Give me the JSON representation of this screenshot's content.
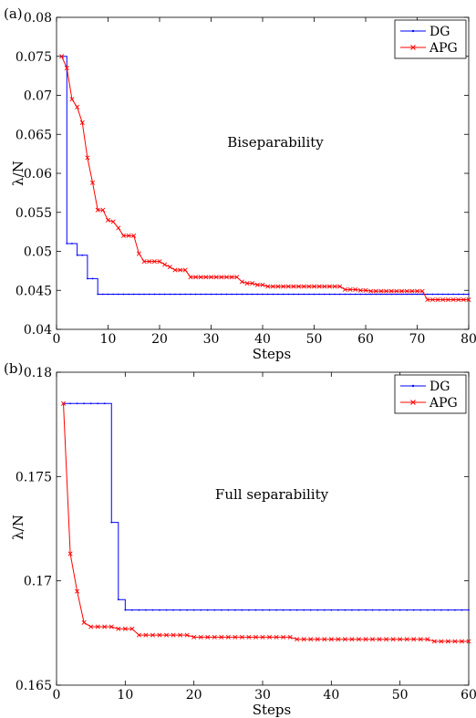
{
  "chart_data": [
    {
      "type": "line",
      "panel_label": "(a)",
      "xlabel": "Steps",
      "ylabel": "λ/N",
      "annotation": "Biseparability",
      "xlim": [
        0,
        80
      ],
      "ylim": [
        0.04,
        0.08
      ],
      "xticks": [
        "0",
        "10",
        "20",
        "30",
        "40",
        "50",
        "60",
        "70",
        "80"
      ],
      "yticks": [
        "0.04",
        "0.045",
        "0.05",
        "0.055",
        "0.06",
        "0.065",
        "0.07",
        "0.075",
        "0.08"
      ],
      "legend_position": "top-right",
      "grid": false,
      "series": [
        {
          "name": "DG",
          "color": "#0000ff",
          "marker": "dot",
          "x": [
            1,
            2,
            3,
            4,
            5,
            6,
            7,
            8,
            9,
            10,
            11,
            12,
            13,
            14,
            15,
            16,
            17,
            18,
            19,
            20,
            21,
            22,
            23,
            24,
            25,
            26,
            27,
            28,
            29,
            30,
            31,
            32,
            33,
            34,
            35,
            36,
            37,
            38,
            39,
            40,
            41,
            42,
            43,
            44,
            45,
            46,
            47,
            48,
            49,
            50,
            51,
            52,
            53,
            54,
            55,
            56,
            57,
            58,
            59,
            60,
            61,
            62,
            63,
            64,
            65,
            66,
            67,
            68,
            69,
            70,
            71,
            72,
            73,
            74,
            75,
            76,
            77,
            78,
            79,
            80
          ],
          "y": [
            0.075,
            0.051,
            0.051,
            0.0495,
            0.0495,
            0.0465,
            0.0465,
            0.0445,
            0.0445,
            0.0445,
            0.0445,
            0.0445,
            0.0445,
            0.0445,
            0.0445,
            0.0445,
            0.0445,
            0.0445,
            0.0445,
            0.0445,
            0.0445,
            0.0445,
            0.0445,
            0.0445,
            0.0445,
            0.0445,
            0.0445,
            0.0445,
            0.0445,
            0.0445,
            0.0445,
            0.0445,
            0.0445,
            0.0445,
            0.0445,
            0.0445,
            0.0445,
            0.0445,
            0.0445,
            0.0445,
            0.0445,
            0.0445,
            0.0445,
            0.0445,
            0.0445,
            0.0445,
            0.0445,
            0.0445,
            0.0445,
            0.0445,
            0.0445,
            0.0445,
            0.0445,
            0.0445,
            0.0445,
            0.0445,
            0.0445,
            0.0445,
            0.0445,
            0.0445,
            0.0445,
            0.0445,
            0.0445,
            0.0445,
            0.0445,
            0.0445,
            0.0445,
            0.0445,
            0.0445,
            0.0445,
            0.0445,
            0.0445,
            0.0445,
            0.0445,
            0.0445,
            0.0445,
            0.0445,
            0.0445,
            0.0445,
            0.0445
          ]
        },
        {
          "name": "APG",
          "color": "#ff0000",
          "marker": "x",
          "x": [
            1,
            2,
            3,
            4,
            5,
            6,
            7,
            8,
            9,
            10,
            11,
            12,
            13,
            14,
            15,
            16,
            17,
            18,
            19,
            20,
            21,
            22,
            23,
            24,
            25,
            26,
            27,
            28,
            29,
            30,
            31,
            32,
            33,
            34,
            35,
            36,
            37,
            38,
            39,
            40,
            41,
            42,
            43,
            44,
            45,
            46,
            47,
            48,
            49,
            50,
            51,
            52,
            53,
            54,
            55,
            56,
            57,
            58,
            59,
            60,
            61,
            62,
            63,
            64,
            65,
            66,
            67,
            68,
            69,
            70,
            71,
            72,
            73,
            74,
            75,
            76,
            77,
            78,
            79,
            80
          ],
          "y": [
            0.075,
            0.0735,
            0.0695,
            0.0685,
            0.0665,
            0.062,
            0.0588,
            0.0553,
            0.0553,
            0.054,
            0.0538,
            0.053,
            0.052,
            0.052,
            0.052,
            0.0497,
            0.0487,
            0.0487,
            0.0487,
            0.0487,
            0.0483,
            0.048,
            0.0476,
            0.0476,
            0.0476,
            0.0467,
            0.0467,
            0.0467,
            0.0467,
            0.0467,
            0.0467,
            0.0467,
            0.0467,
            0.0467,
            0.0467,
            0.0461,
            0.0459,
            0.0459,
            0.0457,
            0.0457,
            0.0455,
            0.0455,
            0.0455,
            0.0455,
            0.0455,
            0.0455,
            0.0455,
            0.0455,
            0.0455,
            0.0455,
            0.0455,
            0.0455,
            0.0455,
            0.0455,
            0.0455,
            0.0451,
            0.0451,
            0.0451,
            0.045,
            0.045,
            0.0449,
            0.0449,
            0.0449,
            0.0449,
            0.0449,
            0.0449,
            0.0449,
            0.0449,
            0.0449,
            0.0449,
            0.0449,
            0.0438,
            0.0438,
            0.0438,
            0.0438,
            0.0438,
            0.0438,
            0.0438,
            0.0438,
            0.0438
          ]
        }
      ]
    },
    {
      "type": "line",
      "panel_label": "(b)",
      "xlabel": "Steps",
      "ylabel": "λ/N",
      "annotation": "Full separability",
      "xlim": [
        0,
        60
      ],
      "ylim": [
        0.165,
        0.18
      ],
      "xticks": [
        "0",
        "10",
        "20",
        "30",
        "40",
        "50",
        "60"
      ],
      "yticks": [
        "0.165",
        "0.17",
        "0.175",
        "0.18"
      ],
      "legend_position": "top-right",
      "grid": false,
      "series": [
        {
          "name": "DG",
          "color": "#0000ff",
          "marker": "dot",
          "x": [
            1,
            2,
            3,
            4,
            5,
            6,
            7,
            8,
            9,
            10,
            11,
            12,
            13,
            14,
            15,
            16,
            17,
            18,
            19,
            20,
            21,
            22,
            23,
            24,
            25,
            26,
            27,
            28,
            29,
            30,
            31,
            32,
            33,
            34,
            35,
            36,
            37,
            38,
            39,
            40,
            41,
            42,
            43,
            44,
            45,
            46,
            47,
            48,
            49,
            50,
            51,
            52,
            53,
            54,
            55,
            56,
            57,
            58,
            59,
            60
          ],
          "y": [
            0.1785,
            0.1785,
            0.1785,
            0.1785,
            0.1785,
            0.1785,
            0.1785,
            0.1728,
            0.1691,
            0.1686,
            0.1686,
            0.1686,
            0.1686,
            0.1686,
            0.1686,
            0.1686,
            0.1686,
            0.1686,
            0.1686,
            0.1686,
            0.1686,
            0.1686,
            0.1686,
            0.1686,
            0.1686,
            0.1686,
            0.1686,
            0.1686,
            0.1686,
            0.1686,
            0.1686,
            0.1686,
            0.1686,
            0.1686,
            0.1686,
            0.1686,
            0.1686,
            0.1686,
            0.1686,
            0.1686,
            0.1686,
            0.1686,
            0.1686,
            0.1686,
            0.1686,
            0.1686,
            0.1686,
            0.1686,
            0.1686,
            0.1686,
            0.1686,
            0.1686,
            0.1686,
            0.1686,
            0.1686,
            0.1686,
            0.1686,
            0.1686,
            0.1686,
            0.1686
          ]
        },
        {
          "name": "APG",
          "color": "#ff0000",
          "marker": "x",
          "x": [
            1,
            2,
            3,
            4,
            5,
            6,
            7,
            8,
            9,
            10,
            11,
            12,
            13,
            14,
            15,
            16,
            17,
            18,
            19,
            20,
            21,
            22,
            23,
            24,
            25,
            26,
            27,
            28,
            29,
            30,
            31,
            32,
            33,
            34,
            35,
            36,
            37,
            38,
            39,
            40,
            41,
            42,
            43,
            44,
            45,
            46,
            47,
            48,
            49,
            50,
            51,
            52,
            53,
            54,
            55,
            56,
            57,
            58,
            59,
            60
          ],
          "y": [
            0.1785,
            0.1713,
            0.1695,
            0.168,
            0.1678,
            0.1678,
            0.1678,
            0.1678,
            0.1677,
            0.1677,
            0.1677,
            0.1674,
            0.1674,
            0.1674,
            0.1674,
            0.1674,
            0.1674,
            0.1674,
            0.1674,
            0.1673,
            0.1673,
            0.1673,
            0.1673,
            0.1673,
            0.1673,
            0.1673,
            0.1673,
            0.1673,
            0.1673,
            0.1673,
            0.1673,
            0.1673,
            0.1673,
            0.1673,
            0.1672,
            0.1672,
            0.1672,
            0.1672,
            0.1672,
            0.1672,
            0.1672,
            0.1672,
            0.1672,
            0.1672,
            0.1672,
            0.1672,
            0.1672,
            0.1672,
            0.1672,
            0.1672,
            0.1672,
            0.1672,
            0.1672,
            0.1672,
            0.1671,
            0.1671,
            0.1671,
            0.1671,
            0.1671,
            0.1671
          ]
        }
      ]
    }
  ]
}
